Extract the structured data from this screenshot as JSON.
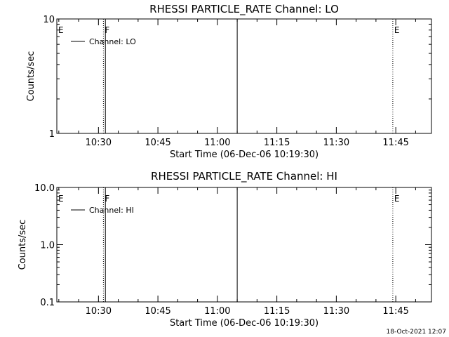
{
  "chart_data": [
    {
      "type": "line",
      "title": "RHESSI PARTICLE_RATE Channel: LO",
      "xlabel": "Start Time (06-Dec-06 10:19:30)",
      "ylabel": "Counts/sec",
      "y_scale": "log",
      "ylim": [
        1,
        10
      ],
      "y_ticks": [
        "1",
        "10"
      ],
      "xlim": [
        "10:19:30",
        "11:54:00"
      ],
      "x_ticks": [
        "10:30",
        "10:45",
        "11:00",
        "11:15",
        "11:30",
        "11:45"
      ],
      "legend_position": "top-left",
      "series": [
        {
          "name": "Channel: LO",
          "values": []
        }
      ],
      "vertical_markers": [
        {
          "time": "10:19:30",
          "style": "dotted",
          "label": "E"
        },
        {
          "time": "10:31:15",
          "style": "dotted",
          "label": "F"
        },
        {
          "time": "10:31:45",
          "style": "solid",
          "label": ""
        },
        {
          "time": "11:05:00",
          "style": "solid",
          "label": ""
        },
        {
          "time": "11:44:15",
          "style": "dotted",
          "label": "E"
        },
        {
          "time": "11:54:00",
          "style": "dotted",
          "label": ""
        }
      ]
    },
    {
      "type": "line",
      "title": "RHESSI PARTICLE_RATE Channel: HI",
      "xlabel": "Start Time (06-Dec-06 10:19:30)",
      "ylabel": "Counts/sec",
      "y_scale": "log",
      "ylim": [
        0.1,
        10
      ],
      "y_ticks": [
        "0.1",
        "1.0",
        "10.0"
      ],
      "xlim": [
        "10:19:30",
        "11:54:00"
      ],
      "x_ticks": [
        "10:30",
        "10:45",
        "11:00",
        "11:15",
        "11:30",
        "11:45"
      ],
      "legend_position": "top-left",
      "series": [
        {
          "name": "Channel: HI",
          "values": []
        }
      ],
      "vertical_markers": [
        {
          "time": "10:19:30",
          "style": "dotted",
          "label": "E"
        },
        {
          "time": "10:31:15",
          "style": "dotted",
          "label": "F"
        },
        {
          "time": "10:31:45",
          "style": "solid",
          "label": ""
        },
        {
          "time": "11:05:00",
          "style": "solid",
          "label": ""
        },
        {
          "time": "11:44:15",
          "style": "dotted",
          "label": "E"
        },
        {
          "time": "11:54:00",
          "style": "dotted",
          "label": ""
        }
      ]
    }
  ],
  "footer": {
    "timestamp": "18-Oct-2021 12:07"
  }
}
